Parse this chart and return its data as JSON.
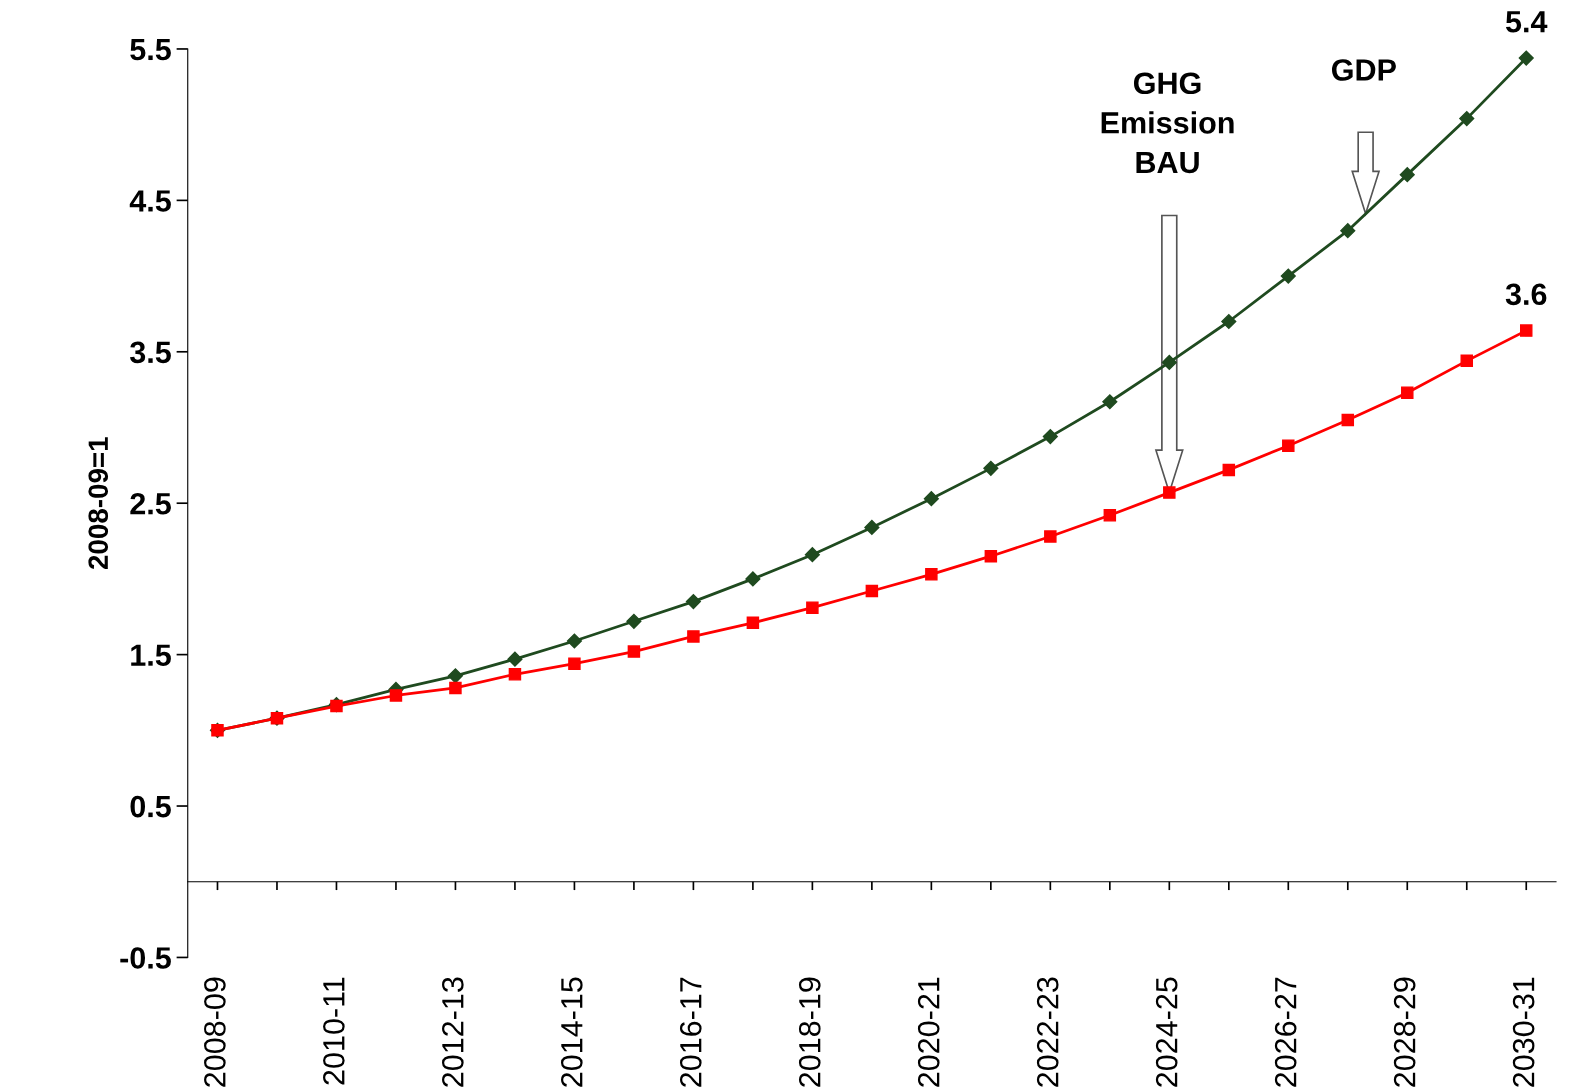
{
  "chart_data": {
    "type": "line",
    "ylabel": "2008-09=1",
    "categories": [
      "2008-09",
      null,
      "2010-11",
      null,
      "2012-13",
      null,
      "2014-15",
      null,
      "2016-17",
      null,
      "2018-19",
      null,
      "2020-21",
      null,
      "2022-23",
      null,
      "2024-25",
      null,
      "2026-27",
      null,
      "2028-29",
      null,
      "2030-31"
    ],
    "series": [
      {
        "color": "#1f4a1f",
        "marker": "diamond",
        "values": [
          1.0,
          1.08,
          1.17,
          1.27,
          1.36,
          1.47,
          1.59,
          1.72,
          1.85,
          2.0,
          2.16,
          2.34,
          2.53,
          2.73,
          2.94,
          3.17,
          3.43,
          3.7,
          4.0,
          4.3,
          4.67,
          5.04,
          5.44
        ]
      },
      {
        "color": "#ff0000",
        "marker": "square",
        "values": [
          1.0,
          1.08,
          1.16,
          1.23,
          1.28,
          1.37,
          1.44,
          1.52,
          1.62,
          1.71,
          1.81,
          1.92,
          2.03,
          2.15,
          2.28,
          2.42,
          2.57,
          2.72,
          2.88,
          3.05,
          3.23,
          3.44,
          3.64
        ]
      }
    ],
    "annotations": [
      "GHG\nEmission\nBAU",
      "GDP",
      {
        "text": "5.4",
        "x": "2030-31",
        "y": 5.44
      },
      {
        "text": "3.6",
        "x": "2030-31",
        "y": 3.64
      }
    ],
    "ylim": [
      -0.5,
      5.5
    ],
    "yticks": [
      -0.5,
      0.5,
      1.5,
      2.5,
      3.5,
      4.5,
      5.5
    ],
    "grid": false,
    "legend": false,
    "line_style": "solid"
  }
}
